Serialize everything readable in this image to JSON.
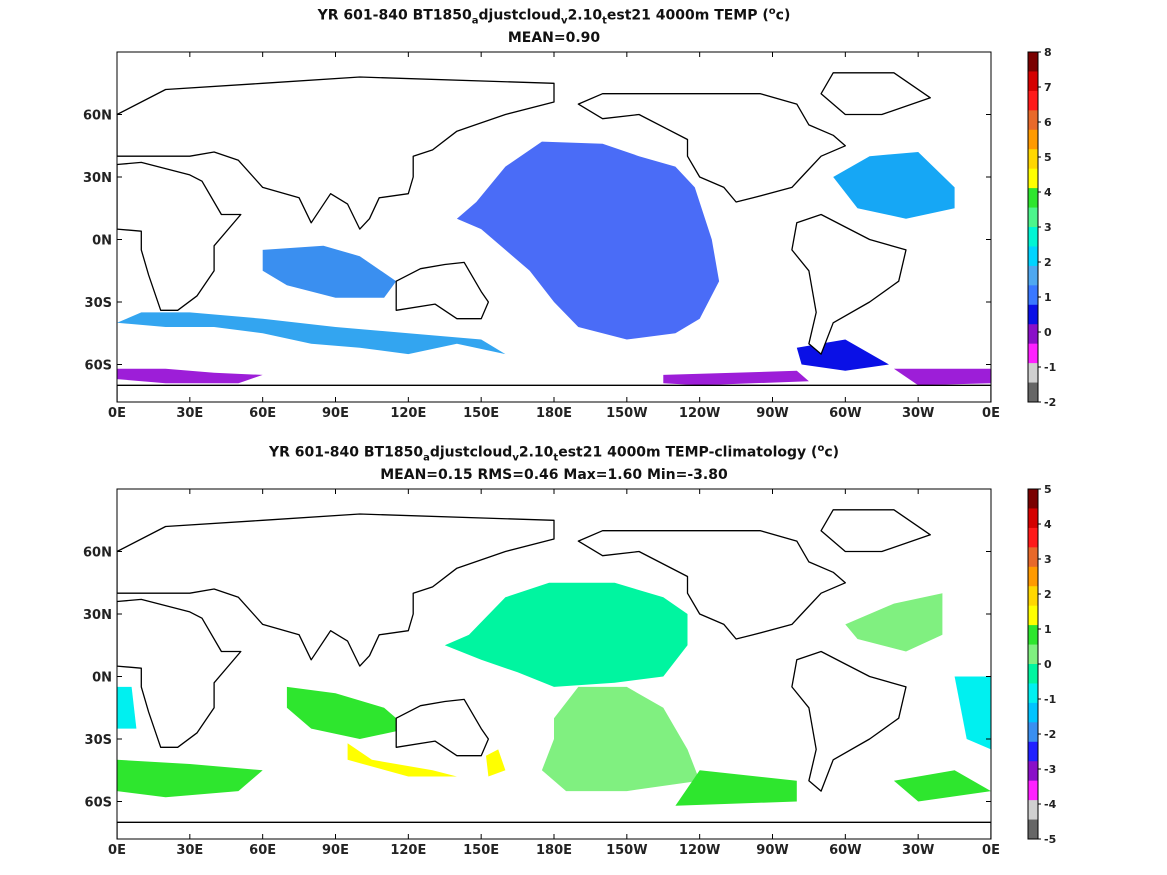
{
  "chart_data": [
    {
      "type": "heatmap",
      "title_parts": [
        "YR 601-840 BT1850",
        "a",
        "djustcloud",
        "v",
        "2.10",
        "t",
        "est21 4000m TEMP (",
        "o",
        "c)"
      ],
      "subtitle": "MEAN=0.90",
      "x_ticks": [
        "0E",
        "30E",
        "60E",
        "90E",
        "120E",
        "150E",
        "180E",
        "150W",
        "120W",
        "90W",
        "60W",
        "30W",
        "0E"
      ],
      "y_ticks": [
        "60N",
        "30N",
        "0N",
        "30S",
        "60S"
      ],
      "y_tick_values": [
        60,
        30,
        0,
        -30,
        -60
      ],
      "xlim": [
        0,
        360
      ],
      "ylim": [
        -78,
        90
      ],
      "colorbar_labels": [
        "8",
        "7",
        "6",
        "5",
        "4",
        "3",
        "2",
        "1",
        "0",
        "-1",
        "-2"
      ],
      "colorbar_colors": [
        "#7a0000",
        "#d40000",
        "#ff1a1a",
        "#e8692a",
        "#ff9a00",
        "#ffd700",
        "#ffff00",
        "#2ee62e",
        "#4cf58c",
        "#00f5d4",
        "#00d4ff",
        "#4fa8f0",
        "#3a78ff",
        "#0a10e6",
        "#8a10c8",
        "#ff20ff",
        "#d0d0d0",
        "#666666"
      ],
      "regions": [
        {
          "color": "#4a6cf7",
          "lon_lat": [
            [
              148,
              18
            ],
            [
              160,
              35
            ],
            [
              175,
              47
            ],
            [
              200,
              46
            ],
            [
              215,
              40
            ],
            [
              230,
              35
            ],
            [
              238,
              25
            ],
            [
              245,
              0
            ],
            [
              248,
              -20
            ],
            [
              240,
              -38
            ],
            [
              230,
              -45
            ],
            [
              210,
              -48
            ],
            [
              190,
              -42
            ],
            [
              180,
              -30
            ],
            [
              170,
              -15
            ],
            [
              160,
              -5
            ],
            [
              150,
              5
            ],
            [
              140,
              10
            ]
          ]
        },
        {
          "color": "#3a8ff0",
          "lon_lat": [
            [
              60,
              -5
            ],
            [
              85,
              -3
            ],
            [
              100,
              -8
            ],
            [
              115,
              -20
            ],
            [
              110,
              -28
            ],
            [
              90,
              -28
            ],
            [
              70,
              -22
            ],
            [
              60,
              -15
            ]
          ]
        },
        {
          "color": "#33a5f0",
          "lon_lat": [
            [
              0,
              -40
            ],
            [
              20,
              -42
            ],
            [
              40,
              -42
            ],
            [
              60,
              -45
            ],
            [
              80,
              -50
            ],
            [
              100,
              -52
            ],
            [
              120,
              -55
            ],
            [
              140,
              -50
            ],
            [
              160,
              -55
            ],
            [
              150,
              -48
            ],
            [
              120,
              -45
            ],
            [
              90,
              -42
            ],
            [
              60,
              -38
            ],
            [
              30,
              -35
            ],
            [
              10,
              -35
            ]
          ]
        },
        {
          "color": "#16a7f5",
          "lon_lat": [
            [
              295,
              30
            ],
            [
              310,
              40
            ],
            [
              330,
              42
            ],
            [
              345,
              25
            ],
            [
              345,
              15
            ],
            [
              325,
              10
            ],
            [
              305,
              15
            ]
          ]
        },
        {
          "color": "#0a10e6",
          "lon_lat": [
            [
              280,
              -52
            ],
            [
              300,
              -48
            ],
            [
              318,
              -60
            ],
            [
              300,
              -63
            ],
            [
              282,
              -60
            ]
          ]
        },
        {
          "color": "#9d1ed8",
          "lon_lat": [
            [
              0,
              -62
            ],
            [
              20,
              -62
            ],
            [
              40,
              -64
            ],
            [
              60,
              -65
            ],
            [
              50,
              -69
            ],
            [
              20,
              -69
            ],
            [
              0,
              -67
            ]
          ]
        },
        {
          "color": "#9d1ed8",
          "lon_lat": [
            [
              225,
              -65
            ],
            [
              280,
              -63
            ],
            [
              285,
              -68
            ],
            [
              240,
              -70
            ],
            [
              225,
              -69
            ]
          ]
        },
        {
          "color": "#9d1ed8",
          "lon_lat": [
            [
              320,
              -62
            ],
            [
              360,
              -62
            ],
            [
              360,
              -69
            ],
            [
              330,
              -70
            ]
          ]
        }
      ],
      "ylabel": "",
      "xlabel": ""
    },
    {
      "type": "heatmap",
      "title_parts": [
        "YR 601-840 BT1850",
        "a",
        "djustcloud",
        "v",
        "2.10",
        "t",
        "est21 4000m TEMP-climatology (",
        "o",
        "c)"
      ],
      "subtitle": "MEAN=0.15   RMS=0.46   Max=1.60   Min=-3.80",
      "x_ticks": [
        "0E",
        "30E",
        "60E",
        "90E",
        "120E",
        "150E",
        "180E",
        "150W",
        "120W",
        "90W",
        "60W",
        "30W",
        "0E"
      ],
      "y_ticks": [
        "60N",
        "30N",
        "0N",
        "30S",
        "60S"
      ],
      "y_tick_values": [
        60,
        30,
        0,
        -30,
        -60
      ],
      "xlim": [
        0,
        360
      ],
      "ylim": [
        -78,
        90
      ],
      "colorbar_labels": [
        "5",
        "4",
        "3",
        "2",
        "1",
        "0",
        "-1",
        "-2",
        "-3",
        "-4",
        "-5"
      ],
      "colorbar_colors": [
        "#7a0000",
        "#d40000",
        "#ff1a1a",
        "#e8692a",
        "#ff9a00",
        "#ffd700",
        "#ffff00",
        "#2ee62e",
        "#80f080",
        "#00f5a0",
        "#00f0f0",
        "#00c4ff",
        "#3a8ff0",
        "#2020ff",
        "#8a10c8",
        "#ff20ff",
        "#d0d0d0",
        "#666666"
      ],
      "regions": [
        {
          "color": "#00f5a0",
          "lon_lat": [
            [
              145,
              20
            ],
            [
              160,
              38
            ],
            [
              178,
              45
            ],
            [
              205,
              45
            ],
            [
              225,
              38
            ],
            [
              235,
              30
            ],
            [
              235,
              15
            ],
            [
              225,
              0
            ],
            [
              205,
              -3
            ],
            [
              180,
              -5
            ],
            [
              165,
              2
            ],
            [
              150,
              8
            ],
            [
              135,
              15
            ]
          ]
        },
        {
          "color": "#80f080",
          "lon_lat": [
            [
              180,
              -20
            ],
            [
              190,
              -5
            ],
            [
              210,
              -5
            ],
            [
              225,
              -15
            ],
            [
              235,
              -35
            ],
            [
              240,
              -50
            ],
            [
              210,
              -55
            ],
            [
              185,
              -55
            ],
            [
              175,
              -45
            ],
            [
              180,
              -30
            ]
          ]
        },
        {
          "color": "#2ee62e",
          "lon_lat": [
            [
              70,
              -5
            ],
            [
              90,
              -8
            ],
            [
              110,
              -15
            ],
            [
              120,
              -25
            ],
            [
              100,
              -30
            ],
            [
              80,
              -25
            ],
            [
              70,
              -15
            ]
          ]
        },
        {
          "color": "#ffff00",
          "lon_lat": [
            [
              95,
              -32
            ],
            [
              105,
              -40
            ],
            [
              130,
              -45
            ],
            [
              140,
              -48
            ],
            [
              120,
              -48
            ],
            [
              95,
              -40
            ]
          ]
        },
        {
          "color": "#ffff00",
          "lon_lat": [
            [
              152,
              -38
            ],
            [
              157,
              -35
            ],
            [
              160,
              -45
            ],
            [
              153,
              -48
            ]
          ]
        },
        {
          "color": "#2ee62e",
          "lon_lat": [
            [
              0,
              -40
            ],
            [
              30,
              -42
            ],
            [
              60,
              -45
            ],
            [
              50,
              -55
            ],
            [
              20,
              -58
            ],
            [
              0,
              -55
            ]
          ]
        },
        {
          "color": "#2ee62e",
          "lon_lat": [
            [
              240,
              -45
            ],
            [
              280,
              -50
            ],
            [
              280,
              -60
            ],
            [
              230,
              -62
            ]
          ]
        },
        {
          "color": "#2ee62e",
          "lon_lat": [
            [
              320,
              -50
            ],
            [
              345,
              -45
            ],
            [
              360,
              -55
            ],
            [
              330,
              -60
            ]
          ]
        },
        {
          "color": "#80f080",
          "lon_lat": [
            [
              300,
              25
            ],
            [
              320,
              35
            ],
            [
              340,
              40
            ],
            [
              340,
              20
            ],
            [
              325,
              12
            ],
            [
              305,
              18
            ]
          ]
        },
        {
          "color": "#00f0f0",
          "lon_lat": [
            [
              0,
              -5
            ],
            [
              6,
              -5
            ],
            [
              8,
              -25
            ],
            [
              0,
              -25
            ]
          ]
        },
        {
          "color": "#00f0f0",
          "lon_lat": [
            [
              345,
              0
            ],
            [
              360,
              0
            ],
            [
              360,
              -35
            ],
            [
              350,
              -30
            ]
          ]
        }
      ],
      "ylabel": "",
      "xlabel": ""
    }
  ]
}
